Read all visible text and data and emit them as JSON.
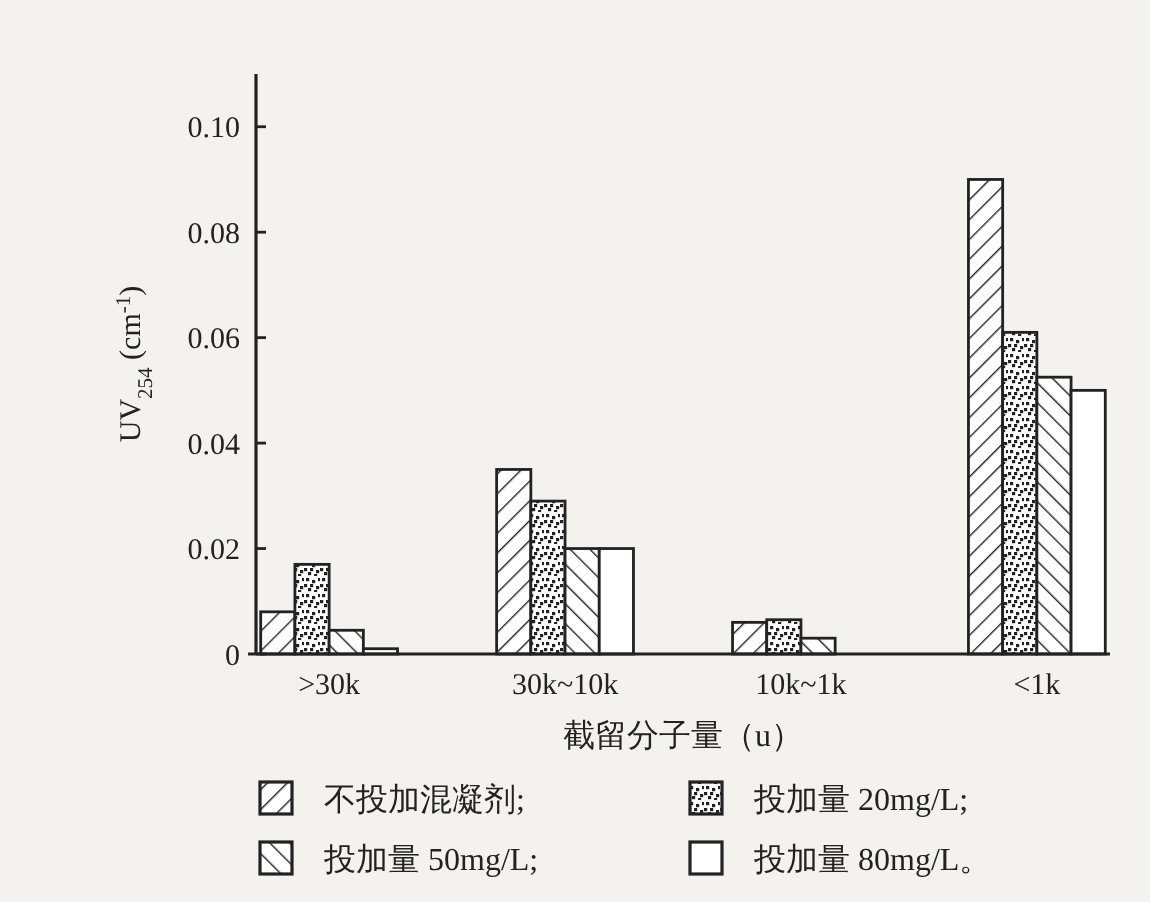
{
  "chart_data": {
    "type": "bar",
    "xlabel": "截留分子量（u）",
    "ylabel": "UV$_{254}$ (cm$^{-1}$)",
    "categories": [
      ">30k",
      "30k~10k",
      "10k~1k",
      "<1k"
    ],
    "series": [
      {
        "name": "不投加混凝剂;",
        "color": "#222222",
        "values": [
          0.008,
          0.035,
          0.006,
          0.09
        ]
      },
      {
        "name": "投加量 20mg/L;",
        "color": "#222222",
        "values": [
          0.017,
          0.029,
          0.0065,
          0.061
        ]
      },
      {
        "name": "投加量 50mg/L;",
        "color": "#222222",
        "values": [
          0.0045,
          0.02,
          0.003,
          0.0525
        ]
      },
      {
        "name": "投加量 80mg/L。",
        "color": "#222222",
        "values": [
          0.001,
          0.02,
          null,
          0.05
        ]
      }
    ],
    "ylim": [
      0,
      0.11
    ],
    "yticks": [
      0,
      0.02,
      0.04,
      0.06,
      {
        "value": 0.1,
        "label": "0.10"
      },
      {
        "value": 0.08,
        "label": "0.08"
      }
    ],
    "legend": "bottom"
  }
}
